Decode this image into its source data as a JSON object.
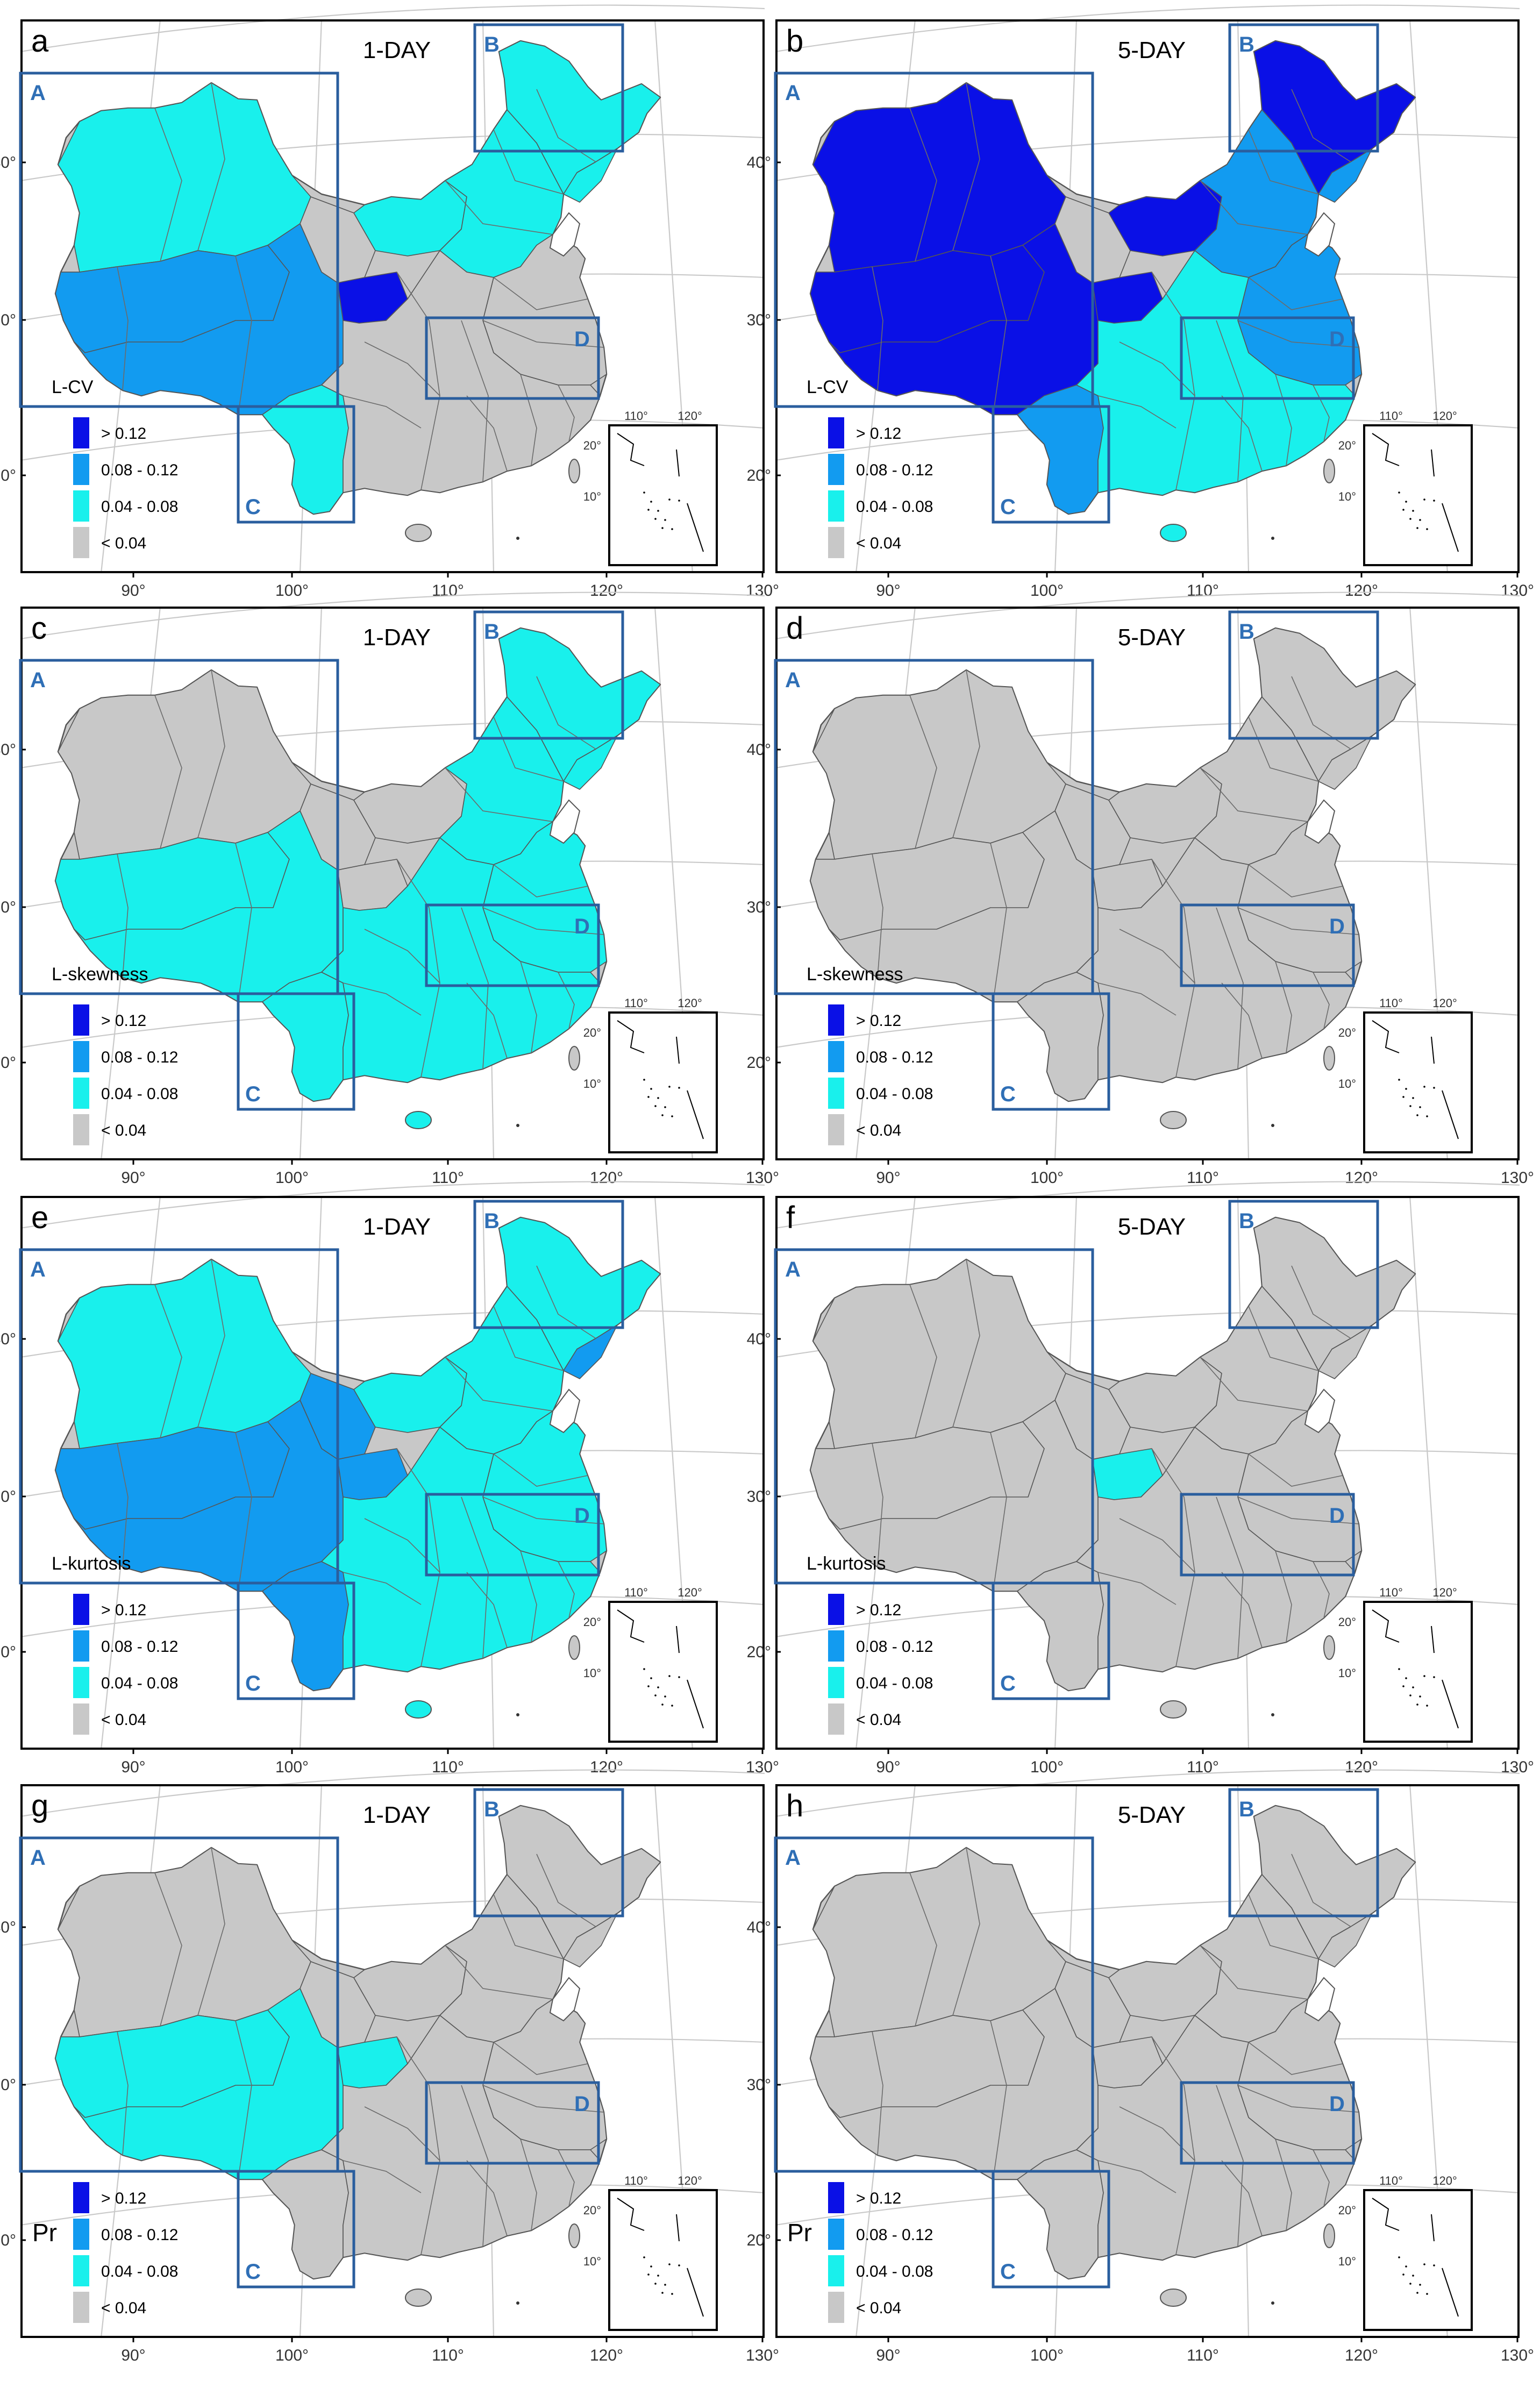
{
  "panels": [
    {
      "letter": "a",
      "period": "1-DAY",
      "metric": "L-CV",
      "classes": {
        "A_west": "c2",
        "A_sw": "c3",
        "A_center": "c1",
        "tibet": "c3",
        "qinghai": "c2",
        "B": "c2",
        "C": "c2",
        "D": "c1",
        "south": "c1",
        "north": "c2",
        "ne_inner": "c2",
        "special": "c4"
      }
    },
    {
      "letter": "b",
      "period": "5-DAY",
      "metric": "L-CV",
      "classes": {
        "A_west": "c4",
        "A_sw": "c4",
        "A_center": "c1",
        "tibet": "c4",
        "qinghai": "c4",
        "B": "c4",
        "C": "c3",
        "D": "c3",
        "south": "c2",
        "north": "c3",
        "ne_inner": "c3",
        "special": "c4"
      }
    },
    {
      "letter": "c",
      "period": "1-DAY",
      "metric": "L-skewness",
      "classes": {
        "A_west": "c1",
        "A_sw": "c2",
        "A_center": "c1",
        "tibet": "c2",
        "qinghai": "c1",
        "B": "c2",
        "C": "c2",
        "D": "c2",
        "south": "c2",
        "north": "c2",
        "ne_inner": "c2",
        "special": "c1"
      }
    },
    {
      "letter": "d",
      "period": "5-DAY",
      "metric": "L-skewness",
      "classes": {
        "A_west": "c1",
        "A_sw": "c1",
        "A_center": "c1",
        "tibet": "c1",
        "qinghai": "c1",
        "B": "c1",
        "C": "c1",
        "D": "c1",
        "south": "c1",
        "north": "c1",
        "ne_inner": "c1",
        "special": "c1"
      }
    },
    {
      "letter": "e",
      "period": "1-DAY",
      "metric": "L-kurtosis",
      "classes": {
        "A_west": "c2",
        "A_sw": "c3",
        "A_center": "c3",
        "tibet": "c3",
        "qinghai": "c2",
        "B": "c2",
        "C": "c3",
        "D": "c2",
        "south": "c2",
        "north": "c2",
        "ne_inner": "c3",
        "special": "c3"
      }
    },
    {
      "letter": "f",
      "period": "5-DAY",
      "metric": "L-kurtosis",
      "classes": {
        "A_west": "c1",
        "A_sw": "c1",
        "A_center": "c1",
        "tibet": "c1",
        "qinghai": "c1",
        "B": "c1",
        "C": "c1",
        "D": "c1",
        "south": "c1",
        "north": "c1",
        "ne_inner": "c1",
        "special": "c2"
      }
    },
    {
      "letter": "g",
      "period": "1-DAY",
      "metric": "Pr",
      "classes": {
        "A_west": "c1",
        "A_sw": "c2",
        "A_center": "c1",
        "tibet": "c2",
        "qinghai": "c1",
        "B": "c1",
        "C": "c1",
        "D": "c1",
        "south": "c1",
        "north": "c1",
        "ne_inner": "c1",
        "special": "c2"
      }
    },
    {
      "letter": "h",
      "period": "5-DAY",
      "metric": "Pr",
      "classes": {
        "A_west": "c1",
        "A_sw": "c1",
        "A_center": "c1",
        "tibet": "c1",
        "qinghai": "c1",
        "B": "c1",
        "C": "c1",
        "D": "c1",
        "south": "c1",
        "north": "c1",
        "ne_inner": "c1",
        "special": "c1"
      }
    }
  ],
  "legend": [
    {
      "label": "> 0.12",
      "color": "#0a10e6"
    },
    {
      "label": "0.08 - 0.12",
      "color": "#129bf0"
    },
    {
      "label": "0.04 - 0.08",
      "color": "#19f0ec"
    },
    {
      "label": "< 0.04",
      "color": "#c8c8c8"
    }
  ],
  "class_colors": {
    "c1": "#c8c8c8",
    "c2": "#19f0ec",
    "c3": "#129bf0",
    "c4": "#0a10e6"
  },
  "region_boxes": [
    "A",
    "B",
    "C",
    "D"
  ],
  "lon_labels": [
    "90°",
    "100°",
    "110°",
    "120°",
    "130°"
  ],
  "lat_labels": [
    "40°",
    "30°",
    "20°"
  ],
  "inset_labels": {
    "lon": [
      "110°",
      "120°"
    ],
    "lat": [
      "20°",
      "10°"
    ]
  }
}
